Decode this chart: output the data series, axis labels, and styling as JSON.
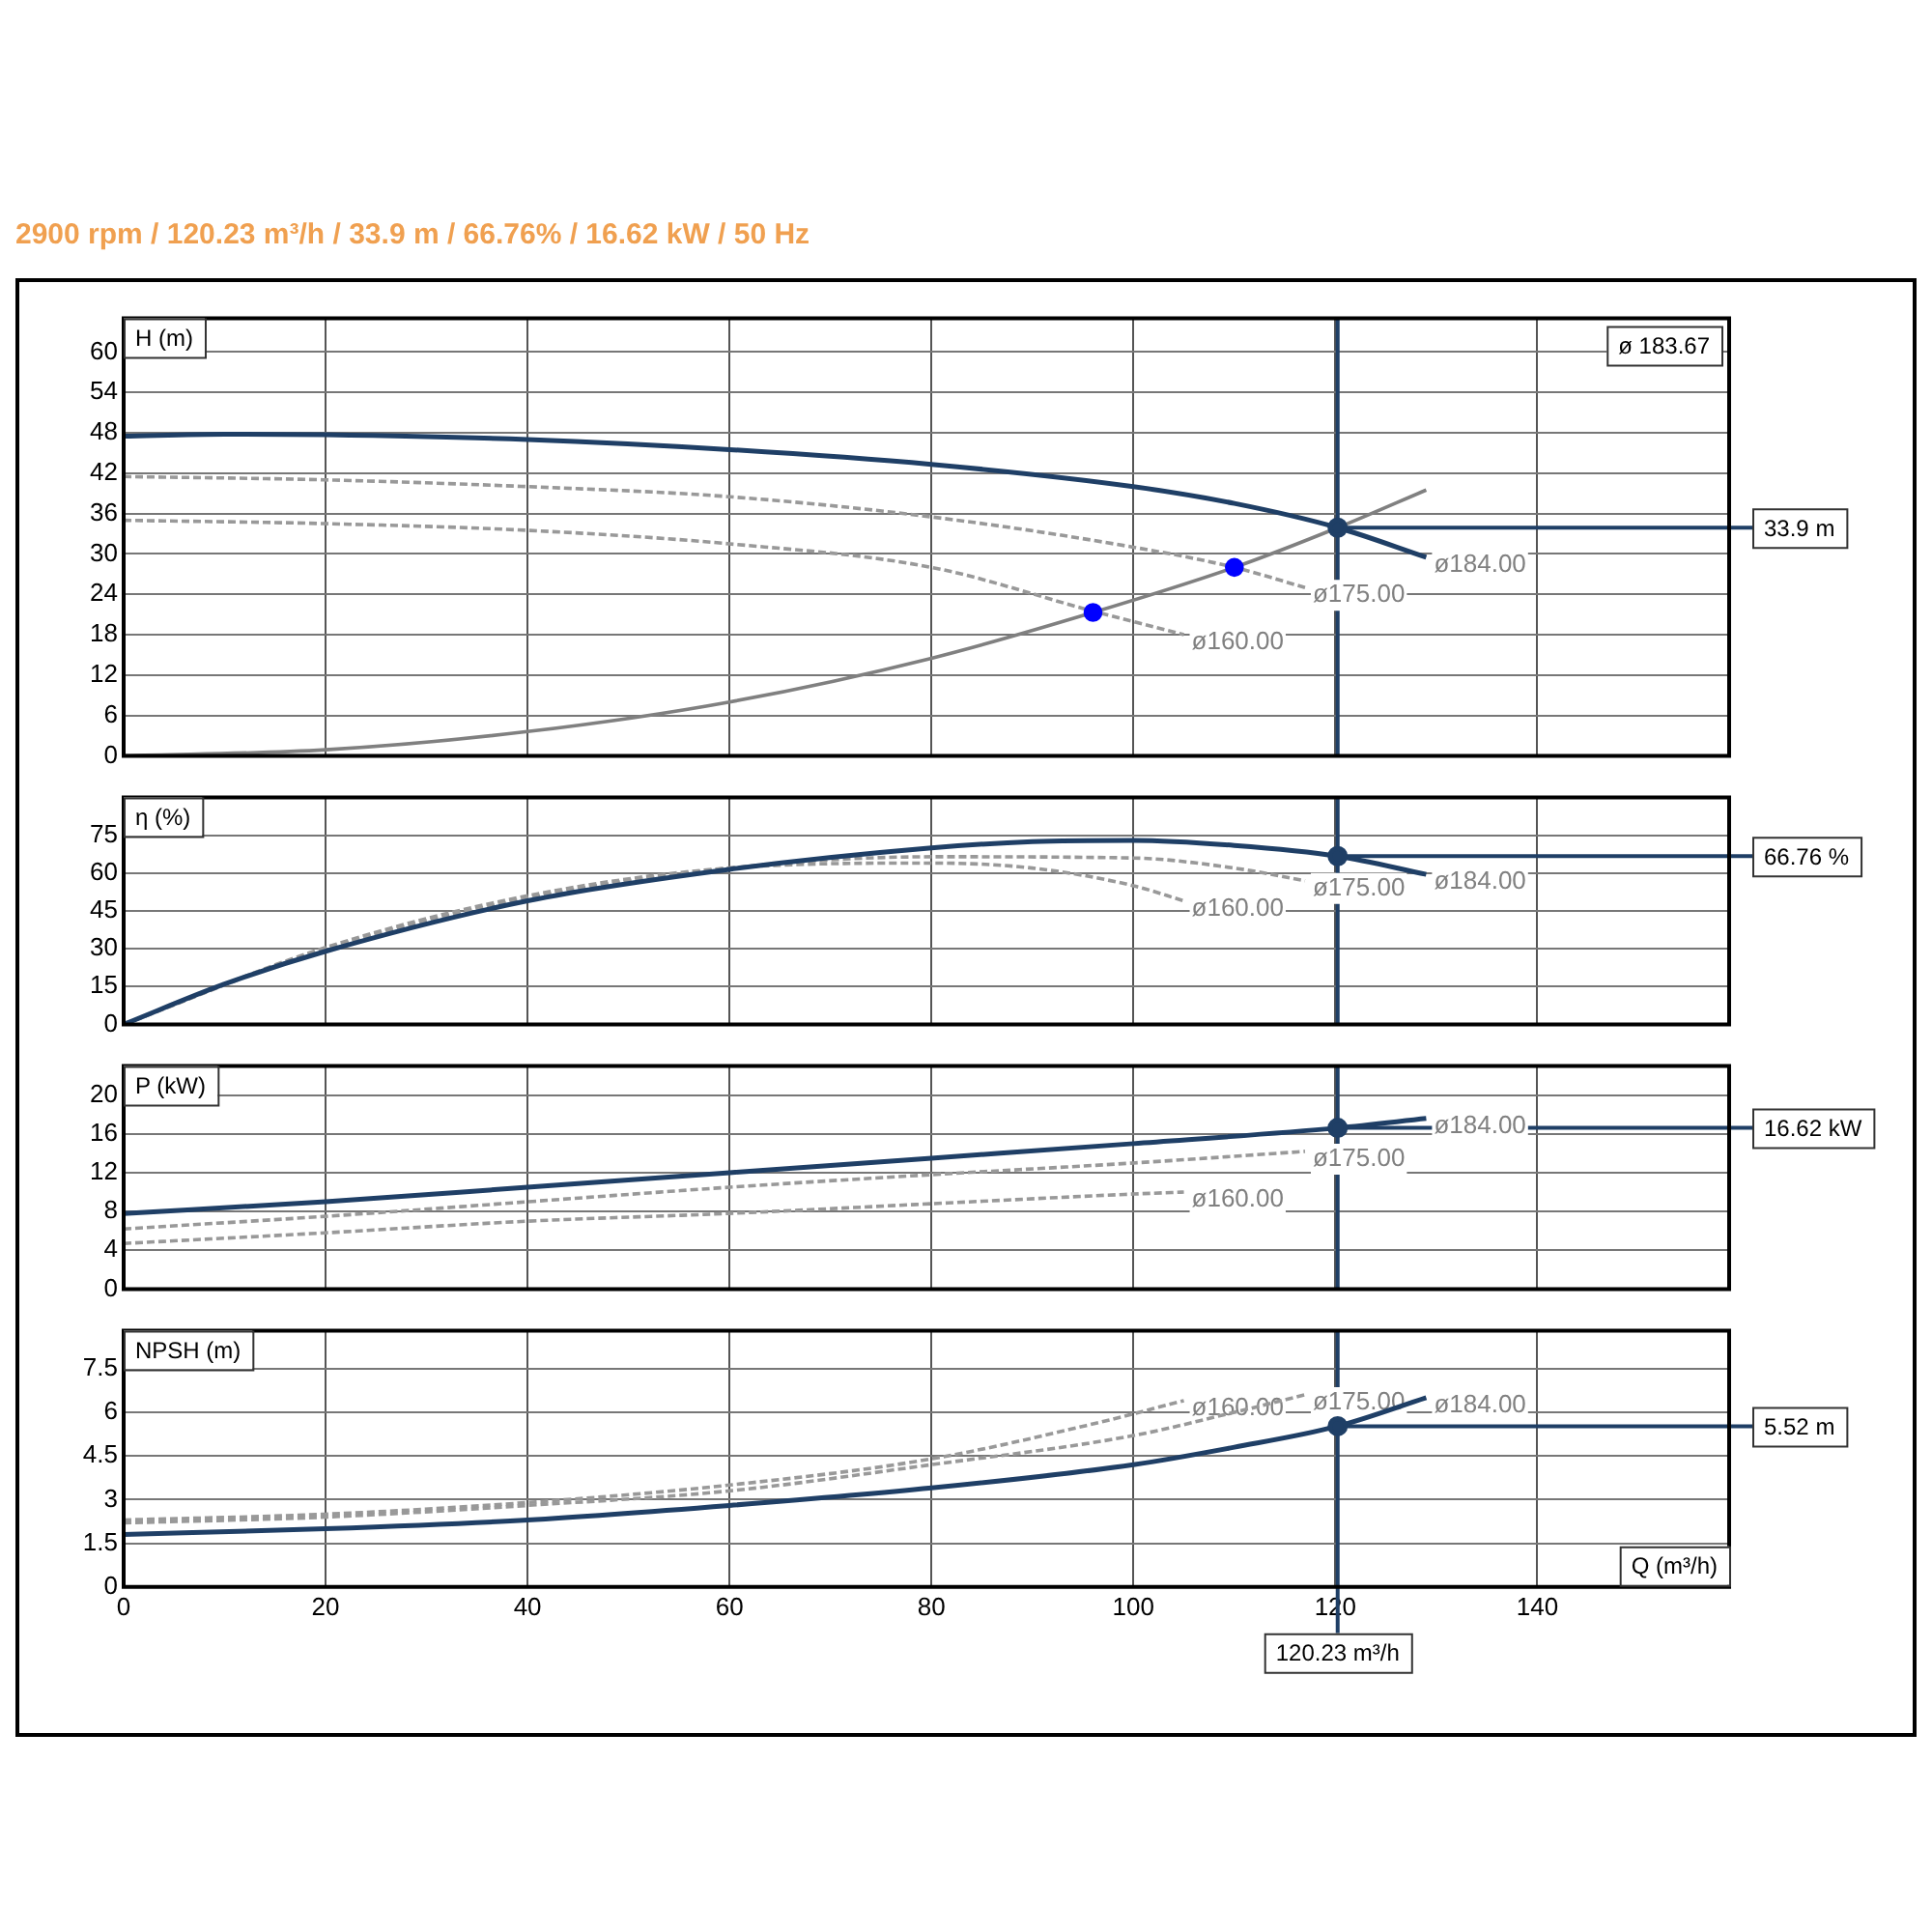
{
  "chart_data": [
    {
      "type": "line",
      "title": "2900 rpm / 120.23 m³/h / 33.9 m / 66.76% / 16.62 kW / 50 Hz",
      "ylabel": "H (m)",
      "annotations": [
        "ø 183.67"
      ],
      "xlim": [
        0,
        159
      ],
      "xticks": [
        0,
        20,
        40,
        60,
        80,
        100,
        120,
        140
      ],
      "ylim": [
        0,
        65
      ],
      "yticks": [
        0,
        6,
        12,
        18,
        24,
        30,
        36,
        42,
        48,
        54,
        60
      ],
      "grid": true,
      "tick_labels": "y",
      "ref_lines": [
        {
          "axis": "x",
          "value": 120.23,
          "color": "#1f3f66"
        },
        {
          "axis": "y",
          "value": 33.9,
          "label": "33.9 m",
          "color": "#1f3f66"
        }
      ],
      "series": [
        {
          "type": "line",
          "name": "ø184.00",
          "color": "#1f3f66",
          "line_style": "solid",
          "marker": "none",
          "x": [
            0,
            10,
            20,
            40,
            60,
            80,
            100,
            110,
            120.23,
            129
          ],
          "values": [
            47.5,
            47.8,
            47.7,
            47,
            45.5,
            43.3,
            40,
            37.5,
            33.9,
            29.5
          ]
        },
        {
          "type": "line",
          "name": "ø175.00",
          "color": "#999999",
          "line_style": "dashed",
          "marker": "none",
          "x": [
            0,
            20,
            40,
            60,
            80,
            100,
            110,
            117
          ],
          "values": [
            41.5,
            41,
            40,
            38.5,
            35.5,
            31,
            28,
            25
          ]
        },
        {
          "type": "line",
          "name": "ø160.00",
          "color": "#999999",
          "line_style": "dashed",
          "marker": "none",
          "x": [
            0,
            20,
            40,
            60,
            80,
            96,
            105
          ],
          "values": [
            35,
            34.5,
            33.5,
            31.5,
            28,
            21.5,
            18
          ]
        },
        {
          "type": "line",
          "color": "#808080",
          "line_style": "solid",
          "marker": "none",
          "x": [
            0,
            20,
            40,
            60,
            80,
            96,
            110,
            120.23,
            129
          ],
          "values": [
            0,
            0.9,
            3.6,
            8,
            14.5,
            21.3,
            28,
            33.9,
            39.5
          ]
        },
        {
          "type": "scatter",
          "color": "#0000ff",
          "marker": "circle",
          "x": [
            96,
            110
          ],
          "values": [
            21.3,
            28
          ]
        },
        {
          "type": "scatter",
          "color": "#1f3f66",
          "marker": "circle",
          "x": [
            120.23
          ],
          "values": [
            33.9
          ]
        }
      ]
    },
    {
      "type": "line",
      "ylabel": "η (%)",
      "xlim": [
        0,
        159
      ],
      "xticks": [
        0,
        20,
        40,
        60,
        80,
        100,
        120,
        140
      ],
      "ylim": [
        0,
        90
      ],
      "yticks": [
        0,
        15,
        30,
        45,
        60,
        75
      ],
      "grid": true,
      "tick_labels": "y",
      "ref_lines": [
        {
          "axis": "x",
          "value": 120.23,
          "color": "#1f3f66"
        },
        {
          "axis": "y",
          "value": 66.76,
          "label": "66.76 %",
          "color": "#1f3f66"
        }
      ],
      "series": [
        {
          "type": "line",
          "name": "ø184.00",
          "color": "#1f3f66",
          "line_style": "solid",
          "marker": "none",
          "x": [
            0,
            10,
            20,
            40,
            60,
            80,
            90,
            100,
            110,
            120.23,
            129
          ],
          "values": [
            0,
            16,
            29,
            49,
            61.5,
            70,
            72.5,
            73,
            71,
            66.76,
            59.5
          ]
        },
        {
          "type": "line",
          "name": "ø175.00",
          "color": "#999999",
          "line_style": "dashed",
          "marker": "none",
          "x": [
            0,
            20,
            40,
            60,
            80,
            100,
            110,
            117
          ],
          "values": [
            0,
            30,
            50,
            62,
            66.5,
            66,
            62,
            57
          ]
        },
        {
          "type": "line",
          "name": "ø160.00",
          "color": "#999999",
          "line_style": "dashed",
          "marker": "none",
          "x": [
            0,
            20,
            40,
            60,
            80,
            90,
            100,
            105
          ],
          "values": [
            0,
            30.5,
            51,
            62,
            64,
            62,
            55,
            49
          ]
        },
        {
          "type": "scatter",
          "color": "#1f3f66",
          "marker": "circle",
          "x": [
            120.23
          ],
          "values": [
            66.76
          ]
        }
      ]
    },
    {
      "type": "line",
      "ylabel": "P (kW)",
      "xlim": [
        0,
        159
      ],
      "xticks": [
        0,
        20,
        40,
        60,
        80,
        100,
        120,
        140
      ],
      "ylim": [
        0,
        23
      ],
      "yticks": [
        0,
        4,
        8,
        12,
        16,
        20
      ],
      "grid": true,
      "tick_labels": "y",
      "ref_lines": [
        {
          "axis": "x",
          "value": 120.23,
          "color": "#1f3f66"
        },
        {
          "axis": "y",
          "value": 16.62,
          "label": "16.62 kW",
          "color": "#1f3f66"
        }
      ],
      "series": [
        {
          "type": "line",
          "name": "ø184.00",
          "color": "#1f3f66",
          "line_style": "solid",
          "marker": "none",
          "x": [
            0,
            20,
            40,
            60,
            80,
            100,
            120.23,
            129
          ],
          "values": [
            7.8,
            9,
            10.5,
            12,
            13.5,
            15,
            16.62,
            17.6
          ]
        },
        {
          "type": "line",
          "name": "ø175.00",
          "color": "#999999",
          "line_style": "dashed",
          "marker": "none",
          "x": [
            0,
            20,
            40,
            60,
            80,
            100,
            117
          ],
          "values": [
            6.2,
            7.5,
            9,
            10.5,
            11.8,
            13,
            14.2
          ]
        },
        {
          "type": "line",
          "name": "ø160.00",
          "color": "#999999",
          "line_style": "dashed",
          "marker": "none",
          "x": [
            0,
            20,
            40,
            60,
            80,
            100,
            105
          ],
          "values": [
            4.7,
            5.8,
            7,
            7.8,
            8.8,
            9.8,
            10
          ]
        },
        {
          "type": "scatter",
          "color": "#1f3f66",
          "marker": "circle",
          "x": [
            120.23
          ],
          "values": [
            16.62
          ]
        }
      ]
    },
    {
      "type": "line",
      "ylabel": "NPSH (m)",
      "xlabel": "Q (m³/h)",
      "xlim": [
        0,
        159
      ],
      "xticks": [
        0,
        20,
        40,
        60,
        80,
        100,
        120,
        140
      ],
      "ylim": [
        0,
        8.8
      ],
      "yticks": [
        0,
        1.5,
        3,
        4.5,
        6,
        7.5
      ],
      "grid": true,
      "ref_lines": [
        {
          "axis": "x",
          "value": 120.23,
          "label": "120.23 m³/h",
          "color": "#1f3f66"
        },
        {
          "axis": "y",
          "value": 5.52,
          "label": "5.52 m",
          "color": "#1f3f66"
        }
      ],
      "series": [
        {
          "type": "line",
          "name": "ø184.00",
          "color": "#1f3f66",
          "line_style": "solid",
          "marker": "none",
          "x": [
            0,
            20,
            40,
            60,
            80,
            100,
            110,
            120.23,
            129
          ],
          "values": [
            1.8,
            2,
            2.3,
            2.8,
            3.4,
            4.2,
            4.8,
            5.52,
            6.5
          ]
        },
        {
          "type": "line",
          "name": "ø175.00",
          "color": "#999999",
          "line_style": "dashed",
          "marker": "none",
          "x": [
            0,
            20,
            40,
            60,
            80,
            100,
            110,
            117
          ],
          "values": [
            2.2,
            2.4,
            2.8,
            3.3,
            4.2,
            5.2,
            6,
            6.6
          ]
        },
        {
          "type": "line",
          "name": "ø160.00",
          "color": "#999999",
          "line_style": "dashed",
          "marker": "none",
          "x": [
            0,
            20,
            40,
            60,
            80,
            96,
            105
          ],
          "values": [
            2.3,
            2.5,
            2.9,
            3.5,
            4.4,
            5.6,
            6.4
          ]
        },
        {
          "type": "scatter",
          "color": "#1f3f66",
          "marker": "circle",
          "x": [
            120.23
          ],
          "values": [
            5.52
          ]
        }
      ]
    }
  ]
}
